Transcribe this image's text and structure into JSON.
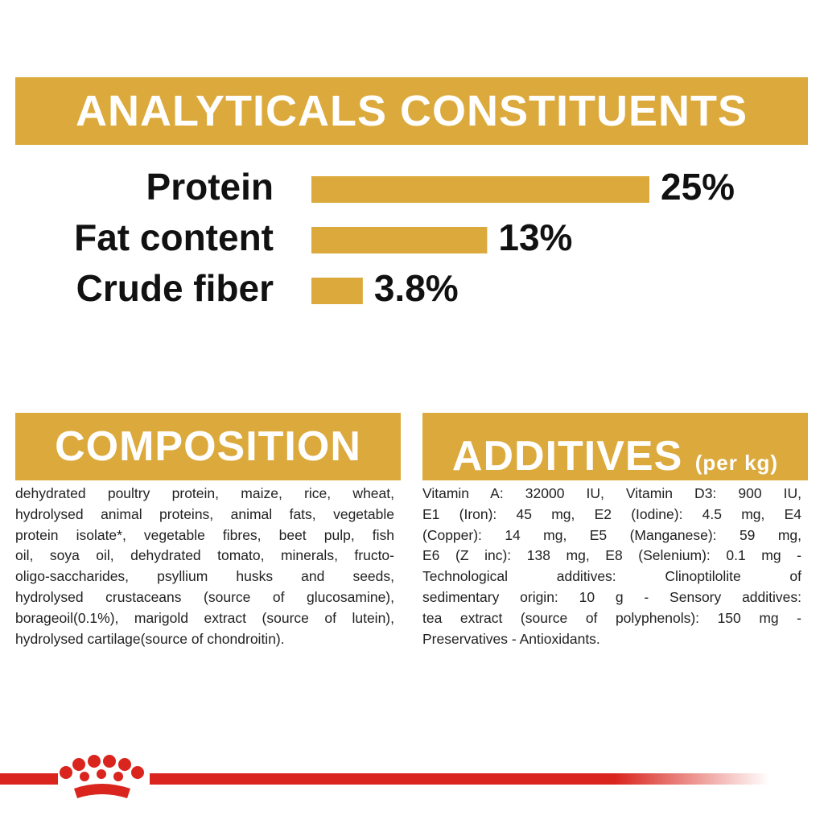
{
  "chart_data": {
    "type": "bar",
    "title": "ANALYTICALS CONSTITUENTS",
    "categories": [
      "Protein",
      "Fat content",
      "Crude fiber"
    ],
    "values": [
      25,
      13,
      3.8
    ],
    "value_labels": [
      "25%",
      "13%",
      "3.8%"
    ],
    "color": "#dcaa3c"
  },
  "composition": {
    "title": "COMPOSITION",
    "lines": [
      "dehydrated poultry protein, maize, rice, wheat,",
      "hydrolysed animal proteins, animal fats, vegetable",
      "protein isolate*, vegetable fibres, beet pulp, fish",
      "oil, soya oil, dehydrated tomato, minerals, fructo-",
      "oligo-saccharides, psyllium husks and seeds,",
      "hydrolysed crustaceans (source of glucosamine),",
      "borageoil(0.1%), marigold extract (source of lutein),",
      "hydrolysed cartilage(source of chondroitin)."
    ]
  },
  "additives": {
    "title": "ADDITIVES",
    "subtitle": "(per kg)",
    "lines": [
      "Vitamin A: 32000 IU, Vitamin D3: 900 IU,",
      "E1 (Iron): 45 mg, E2 (Iodine): 4.5 mg, E4",
      "(Copper): 14 mg, E5 (Manganese): 59 mg,",
      "E6 (Z inc): 138 mg, E8 (Selenium): 0.1 mg -",
      "Technological additives: Clinoptilolite of",
      "sedimentary origin: 10 g - Sensory additives:",
      "tea extract (source of polyphenols): 150 mg -",
      "Preservatives - Antioxidants."
    ]
  }
}
